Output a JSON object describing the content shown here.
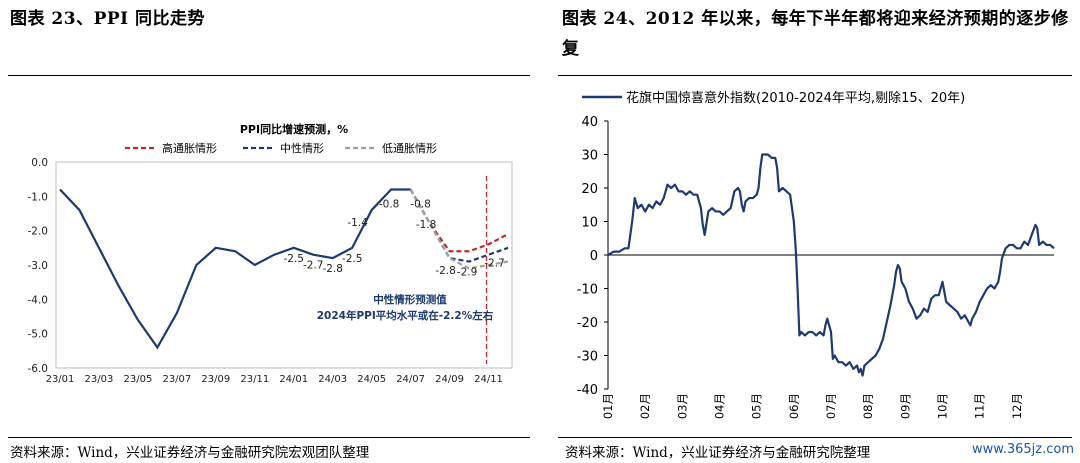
{
  "left_title": "图表 23、PPI 同比走势",
  "right_title": "图表 24、2012 年以来，每年下半年都将迎来经济预期的逐步修复",
  "left_source": "资料来源：Wind，兴业证券经济与金融研究院宏观团队整理",
  "right_source": "资料来源：Wind，兴业证券经济与金融研究院整理",
  "watermark": "www.365jz.com",
  "colors": {
    "main": "#1f3a73",
    "high": "#c0282d",
    "mid": "#1f3a73",
    "low": "#a0a0a0",
    "vline": "#c0282d"
  },
  "chart_data": [
    {
      "type": "line",
      "title": "PPI同比增速预测，%",
      "legend": [
        "高通胀情形",
        "中性情形",
        "低通胀情形"
      ],
      "legend_placement": "top",
      "x_ticks": [
        "23/01",
        "23/03",
        "23/05",
        "23/07",
        "23/09",
        "23/11",
        "24/01",
        "24/03",
        "24/05",
        "24/07",
        "24/09",
        "24/11"
      ],
      "ylim": [
        -6.0,
        0.0
      ],
      "y_ticks": [
        "0.0",
        "-1.0",
        "-2.0",
        "-3.0",
        "-4.0",
        "-5.0",
        "-6.0"
      ],
      "actual": [
        -0.8,
        -1.4,
        -2.5,
        -3.6,
        -4.6,
        -5.4,
        -4.4,
        -3.0,
        -2.5,
        -2.6,
        -3.0,
        -2.7,
        -2.5,
        -2.7,
        -2.8,
        -2.5,
        -1.4,
        -0.8,
        -0.8
      ],
      "actual_labels": [
        {
          "i": 12,
          "text": "-2.5"
        },
        {
          "i": 13,
          "text": "-2.7"
        },
        {
          "i": 14,
          "text": "-2.8"
        },
        {
          "i": 15,
          "text": "-2.5"
        },
        {
          "i": 16,
          "text": "-1.4"
        },
        {
          "i": 17,
          "text": "-0.8"
        },
        {
          "i": 18,
          "text": "-0.8"
        }
      ],
      "forecast_start_index": 18,
      "forecast": [
        {
          "name": "高通胀情形",
          "values": [
            -0.8,
            -1.8,
            -2.6,
            -2.6,
            -2.4,
            -2.1
          ]
        },
        {
          "name": "中性情形",
          "values": [
            -0.8,
            -1.8,
            -2.8,
            -2.9,
            -2.7,
            -2.5
          ]
        },
        {
          "name": "低通胀情形",
          "values": [
            -0.8,
            -1.8,
            -2.8,
            -3.1,
            -3.0,
            -2.9
          ]
        }
      ],
      "forecast_labels": [
        "-1.8",
        "-2.8",
        "-2.9",
        "-2.7"
      ],
      "annotation_line1": "中性情形预测值",
      "annotation_line2": "2024年PPI平均水平或在-2.2%左右",
      "vline_index": 22
    },
    {
      "type": "line",
      "legend": [
        "花旗中国惊喜意外指数(2010-2024年平均,剔除15、20年)"
      ],
      "legend_placement": "top",
      "ylim": [
        -40,
        40
      ],
      "y_ticks": [
        "40",
        "30",
        "20",
        "10",
        "0",
        "-10",
        "-20",
        "-30",
        "-40"
      ],
      "x_ticks": [
        "01月",
        "02月",
        "03月",
        "04月",
        "05月",
        "06月",
        "07月",
        "08月",
        "09月",
        "10月",
        "11月",
        "12月"
      ],
      "x_range_months": [
        0,
        12
      ],
      "points": [
        [
          0.0,
          0
        ],
        [
          0.15,
          1
        ],
        [
          0.3,
          1
        ],
        [
          0.45,
          2
        ],
        [
          0.55,
          2
        ],
        [
          0.65,
          10
        ],
        [
          0.72,
          17
        ],
        [
          0.8,
          14
        ],
        [
          0.9,
          15
        ],
        [
          1.0,
          13
        ],
        [
          1.1,
          15
        ],
        [
          1.2,
          14
        ],
        [
          1.3,
          16
        ],
        [
          1.4,
          15
        ],
        [
          1.5,
          17
        ],
        [
          1.6,
          21
        ],
        [
          1.7,
          20
        ],
        [
          1.8,
          21
        ],
        [
          1.9,
          19
        ],
        [
          2.0,
          19
        ],
        [
          2.1,
          18
        ],
        [
          2.2,
          19
        ],
        [
          2.3,
          18
        ],
        [
          2.4,
          18
        ],
        [
          2.5,
          14
        ],
        [
          2.55,
          9
        ],
        [
          2.6,
          6
        ],
        [
          2.7,
          13
        ],
        [
          2.8,
          14
        ],
        [
          2.9,
          13
        ],
        [
          3.0,
          13
        ],
        [
          3.1,
          12
        ],
        [
          3.2,
          13
        ],
        [
          3.3,
          14
        ],
        [
          3.4,
          19
        ],
        [
          3.5,
          20
        ],
        [
          3.55,
          19
        ],
        [
          3.6,
          15
        ],
        [
          3.65,
          13
        ],
        [
          3.7,
          16
        ],
        [
          3.8,
          17
        ],
        [
          3.9,
          17
        ],
        [
          4.0,
          18
        ],
        [
          4.05,
          20
        ],
        [
          4.1,
          26
        ],
        [
          4.15,
          30
        ],
        [
          4.2,
          30
        ],
        [
          4.3,
          30
        ],
        [
          4.4,
          29
        ],
        [
          4.5,
          29
        ],
        [
          4.55,
          26
        ],
        [
          4.6,
          19
        ],
        [
          4.7,
          20
        ],
        [
          4.8,
          19
        ],
        [
          4.9,
          18
        ],
        [
          5.0,
          10
        ],
        [
          5.05,
          2
        ],
        [
          5.1,
          -10
        ],
        [
          5.15,
          -24
        ],
        [
          5.2,
          -23
        ],
        [
          5.3,
          -24
        ],
        [
          5.4,
          -23
        ],
        [
          5.5,
          -23
        ],
        [
          5.6,
          -24
        ],
        [
          5.7,
          -23
        ],
        [
          5.8,
          -24
        ],
        [
          5.85,
          -21
        ],
        [
          5.9,
          -19
        ],
        [
          5.95,
          -21
        ],
        [
          6.0,
          -23
        ],
        [
          6.05,
          -31
        ],
        [
          6.1,
          -30
        ],
        [
          6.2,
          -32
        ],
        [
          6.3,
          -32
        ],
        [
          6.4,
          -33
        ],
        [
          6.5,
          -32
        ],
        [
          6.6,
          -34
        ],
        [
          6.7,
          -33
        ],
        [
          6.75,
          -35
        ],
        [
          6.8,
          -34
        ],
        [
          6.85,
          -36
        ],
        [
          6.9,
          -33
        ],
        [
          7.0,
          -32
        ],
        [
          7.1,
          -31
        ],
        [
          7.2,
          -30
        ],
        [
          7.3,
          -28
        ],
        [
          7.4,
          -25
        ],
        [
          7.5,
          -20
        ],
        [
          7.6,
          -15
        ],
        [
          7.7,
          -9
        ],
        [
          7.75,
          -5
        ],
        [
          7.8,
          -3
        ],
        [
          7.85,
          -4
        ],
        [
          7.9,
          -8
        ],
        [
          8.0,
          -10
        ],
        [
          8.1,
          -14
        ],
        [
          8.2,
          -16
        ],
        [
          8.3,
          -19
        ],
        [
          8.4,
          -18
        ],
        [
          8.5,
          -16
        ],
        [
          8.6,
          -17
        ],
        [
          8.7,
          -13
        ],
        [
          8.8,
          -12
        ],
        [
          8.9,
          -12
        ],
        [
          9.0,
          -8
        ],
        [
          9.05,
          -11
        ],
        [
          9.1,
          -14
        ],
        [
          9.2,
          -15
        ],
        [
          9.3,
          -16
        ],
        [
          9.4,
          -17
        ],
        [
          9.5,
          -19
        ],
        [
          9.6,
          -18
        ],
        [
          9.7,
          -20
        ],
        [
          9.75,
          -21
        ],
        [
          9.8,
          -19
        ],
        [
          9.9,
          -17
        ],
        [
          10.0,
          -14
        ],
        [
          10.1,
          -12
        ],
        [
          10.2,
          -10
        ],
        [
          10.3,
          -9
        ],
        [
          10.4,
          -10
        ],
        [
          10.5,
          -8
        ],
        [
          10.55,
          -5
        ],
        [
          10.6,
          -1
        ],
        [
          10.7,
          2
        ],
        [
          10.8,
          3
        ],
        [
          10.9,
          3
        ],
        [
          11.0,
          2
        ],
        [
          11.1,
          2
        ],
        [
          11.2,
          4
        ],
        [
          11.3,
          3
        ],
        [
          11.4,
          6
        ],
        [
          11.5,
          9
        ],
        [
          11.55,
          8
        ],
        [
          11.6,
          3
        ],
        [
          11.7,
          4
        ],
        [
          11.8,
          3
        ],
        [
          11.9,
          3
        ],
        [
          12.0,
          2
        ]
      ]
    }
  ]
}
